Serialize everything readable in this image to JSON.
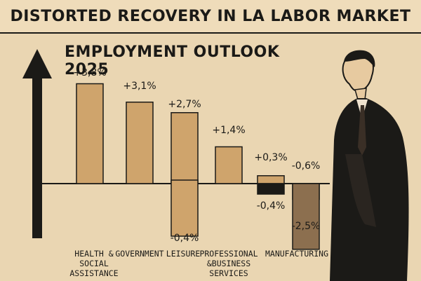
{
  "banner": {
    "title": "DISTORTED RECOVERY IN LA LABOR MARKET"
  },
  "header": {
    "subtitle": "EMPLOYMENT OUTLOOK 2025"
  },
  "colors": {
    "background": "#ead6b2",
    "bar_positive": "#cfa46c",
    "bar_negative_dark": "#1b1a17",
    "bar_negative_mid": "#8c6f4f",
    "ink": "#1b1a17"
  },
  "chart_data": {
    "type": "bar",
    "title": "EMPLOYMENT OUTLOOK 2025",
    "categories": [
      "HEALTH &\nSOCIAL\nASSISTANCE",
      "GOVERNMENT",
      "LEISURE",
      "PROFESSIONAL\n&BUSINESS\nSERVICES",
      "",
      "MANUFACTURING"
    ],
    "series": [
      {
        "values": [
          3.8,
          3.1,
          2.7,
          1.4,
          0.3,
          -0.6
        ]
      },
      {
        "values": [
          null,
          null,
          -0.4,
          null,
          -0.4,
          -2.5
        ]
      }
    ],
    "value_labels": {
      "pos": [
        "+3,8%",
        "+3,1%",
        "+2,7%",
        "+1,4%",
        "+0,3%",
        "-0,6%"
      ],
      "neg": [
        "",
        "",
        "-0,4%",
        "",
        "-0,4%",
        "-2,5%"
      ]
    },
    "ylim": [
      -2.5,
      4.2
    ],
    "grid": false,
    "legend": "none"
  }
}
